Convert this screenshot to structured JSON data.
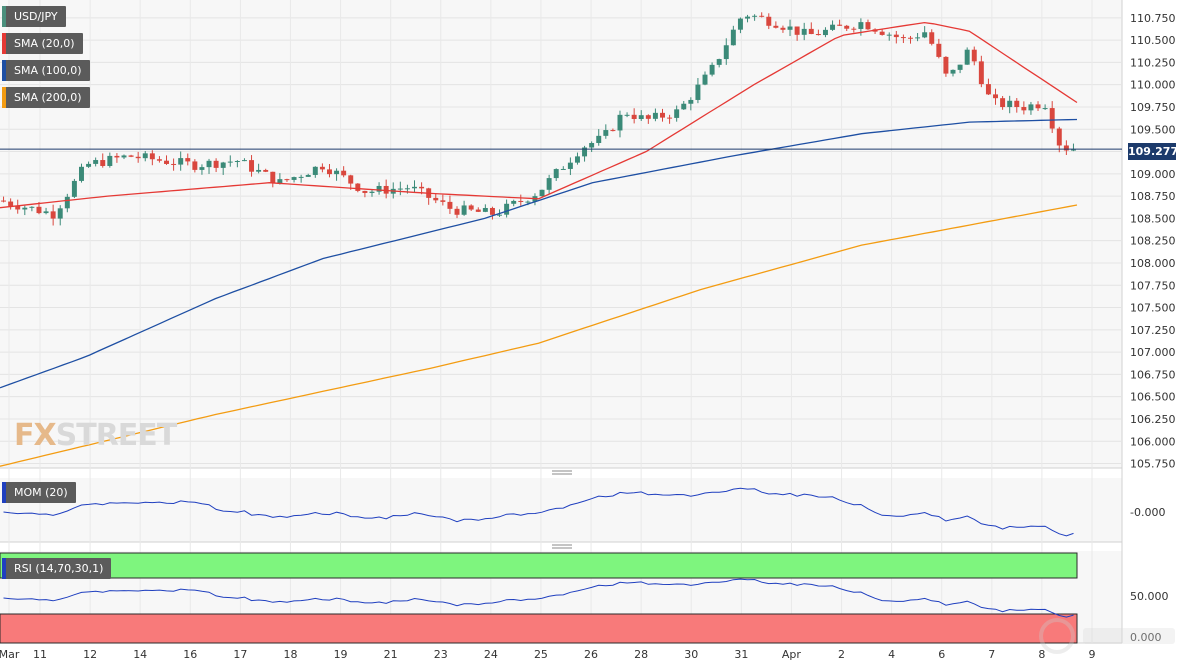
{
  "chart_data": {
    "type": "candlestick",
    "symbol": "USD/JPY",
    "last_price": "109.277",
    "brand": {
      "fx": "FX",
      "street": "STREET"
    },
    "indicators": [
      {
        "name": "SMA (20,0)",
        "color": "#e53935"
      },
      {
        "name": "SMA (100,0)",
        "color": "#1e4fa3"
      },
      {
        "name": "SMA (200,0)",
        "color": "#f39c12"
      }
    ],
    "price_axis": {
      "ylim": [
        105.7,
        110.95
      ],
      "ticks": [
        "110.750",
        "110.500",
        "110.250",
        "110.000",
        "109.750",
        "109.500",
        "109.250",
        "109.000",
        "108.750",
        "108.500",
        "108.250",
        "108.000",
        "107.750",
        "107.500",
        "107.250",
        "107.000",
        "106.750",
        "106.500",
        "106.250",
        "106.000",
        "105.750"
      ]
    },
    "x_axis": {
      "labels": [
        "Mar",
        "11",
        "12",
        "14",
        "16",
        "17",
        "18",
        "19",
        "21",
        "23",
        "24",
        "25",
        "26",
        "28",
        "30",
        "31",
        "Apr",
        "2",
        "4",
        "6",
        "7",
        "8",
        "9"
      ]
    },
    "sma20_anchors": [
      [
        0,
        108.62
      ],
      [
        0.1,
        108.75
      ],
      [
        0.25,
        108.9
      ],
      [
        0.4,
        108.78
      ],
      [
        0.5,
        108.72
      ],
      [
        0.6,
        109.25
      ],
      [
        0.7,
        110.0
      ],
      [
        0.78,
        110.55
      ],
      [
        0.86,
        110.7
      ],
      [
        0.9,
        110.6
      ],
      [
        1,
        109.8
      ]
    ],
    "sma100_anchors": [
      [
        0,
        106.6
      ],
      [
        0.08,
        106.95
      ],
      [
        0.2,
        107.6
      ],
      [
        0.3,
        108.05
      ],
      [
        0.45,
        108.5
      ],
      [
        0.55,
        108.9
      ],
      [
        0.68,
        109.2
      ],
      [
        0.8,
        109.45
      ],
      [
        0.9,
        109.58
      ],
      [
        1,
        109.61
      ]
    ],
    "sma200_anchors": [
      [
        0,
        105.72
      ],
      [
        0.2,
        106.3
      ],
      [
        0.4,
        106.82
      ],
      [
        0.5,
        107.1
      ],
      [
        0.65,
        107.7
      ],
      [
        0.8,
        108.2
      ],
      [
        1,
        108.65
      ]
    ],
    "close_anchors": [
      [
        0,
        108.7
      ],
      [
        0.05,
        108.55
      ],
      [
        0.08,
        109.1
      ],
      [
        0.12,
        109.2
      ],
      [
        0.18,
        109.1
      ],
      [
        0.22,
        109.15
      ],
      [
        0.26,
        108.9
      ],
      [
        0.3,
        109.1
      ],
      [
        0.34,
        108.8
      ],
      [
        0.38,
        108.85
      ],
      [
        0.42,
        108.6
      ],
      [
        0.46,
        108.55
      ],
      [
        0.5,
        108.8
      ],
      [
        0.54,
        109.3
      ],
      [
        0.56,
        109.4
      ],
      [
        0.58,
        109.7
      ],
      [
        0.6,
        109.6
      ],
      [
        0.63,
        109.7
      ],
      [
        0.66,
        110.15
      ],
      [
        0.69,
        110.8
      ],
      [
        0.72,
        110.7
      ],
      [
        0.75,
        110.55
      ],
      [
        0.8,
        110.7
      ],
      [
        0.84,
        110.5
      ],
      [
        0.86,
        110.6
      ],
      [
        0.88,
        110.05
      ],
      [
        0.9,
        110.4
      ],
      [
        0.92,
        109.8
      ],
      [
        0.95,
        109.75
      ],
      [
        0.97,
        109.8
      ],
      [
        0.985,
        109.3
      ],
      [
        1,
        109.28
      ]
    ],
    "panels": [
      {
        "name": "MOM (20)",
        "tick": "-0.000"
      },
      {
        "name": "RSI (14,70,30,1)",
        "tick": "50.000",
        "tick_low": "0.000"
      }
    ]
  }
}
